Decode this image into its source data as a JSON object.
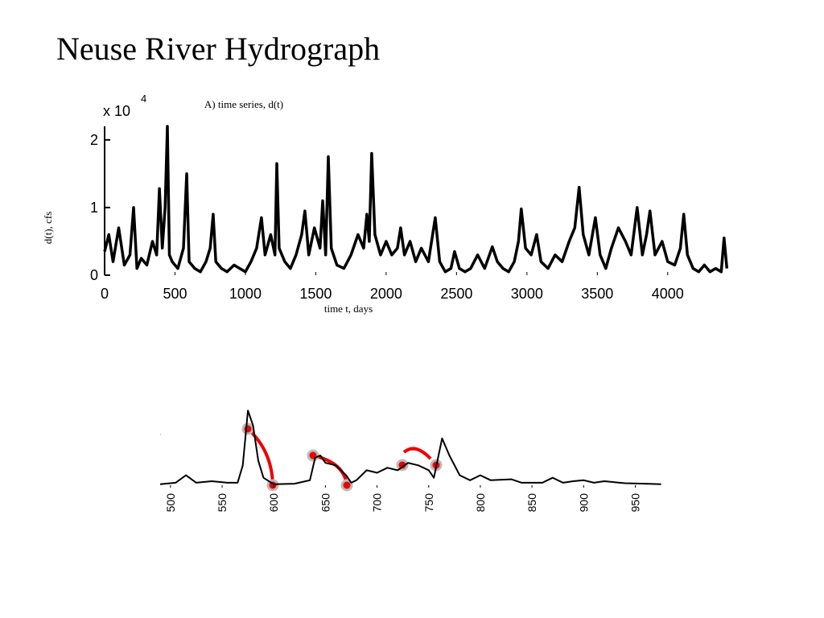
{
  "title": "Neuse River Hydrograph",
  "chart_data": [
    {
      "type": "line",
      "title": "A) time series, d(t)",
      "x_label": "time t, days",
      "y_label": "d(t), cfs",
      "y_multiplier": "x 10",
      "y_multiplier_exponent": "4",
      "color": "#000000",
      "xlim": [
        0,
        4430
      ],
      "ylim": [
        0,
        2.2
      ],
      "xticks": [
        0,
        500,
        1000,
        1500,
        2000,
        2500,
        3000,
        3500,
        4000
      ],
      "yticks": [
        0,
        1,
        2
      ],
      "x": [
        0,
        30,
        60,
        100,
        140,
        180,
        206,
        230,
        260,
        300,
        340,
        370,
        389,
        410,
        430,
        446,
        460,
        480,
        520,
        560,
        583,
        600,
        640,
        680,
        720,
        750,
        771,
        790,
        830,
        870,
        920,
        960,
        1000,
        1040,
        1080,
        1114,
        1140,
        1180,
        1210,
        1223,
        1240,
        1280,
        1320,
        1360,
        1400,
        1423,
        1450,
        1490,
        1530,
        1549,
        1570,
        1589,
        1610,
        1650,
        1700,
        1750,
        1800,
        1840,
        1863,
        1880,
        1897,
        1920,
        1960,
        2000,
        2040,
        2080,
        2103,
        2130,
        2170,
        2210,
        2250,
        2300,
        2349,
        2380,
        2420,
        2460,
        2486,
        2520,
        2560,
        2600,
        2650,
        2700,
        2754,
        2790,
        2830,
        2870,
        2910,
        2940,
        2960,
        2990,
        3030,
        3069,
        3100,
        3150,
        3200,
        3250,
        3300,
        3340,
        3371,
        3400,
        3440,
        3486,
        3520,
        3560,
        3600,
        3650,
        3700,
        3740,
        3783,
        3820,
        3850,
        3874,
        3910,
        3960,
        4000,
        4050,
        4090,
        4114,
        4140,
        4180,
        4220,
        4260,
        4300,
        4340,
        4380,
        4400,
        4420
      ],
      "values": [
        0.35,
        0.6,
        0.2,
        0.7,
        0.15,
        0.3,
        1.0,
        0.1,
        0.25,
        0.15,
        0.5,
        0.3,
        1.28,
        0.4,
        1.0,
        2.2,
        0.3,
        0.2,
        0.1,
        0.4,
        1.5,
        0.2,
        0.1,
        0.05,
        0.2,
        0.4,
        0.9,
        0.2,
        0.1,
        0.05,
        0.15,
        0.1,
        0.05,
        0.2,
        0.4,
        0.85,
        0.3,
        0.6,
        0.3,
        1.65,
        0.4,
        0.2,
        0.1,
        0.3,
        0.6,
        0.95,
        0.3,
        0.7,
        0.4,
        1.1,
        0.3,
        1.75,
        0.4,
        0.15,
        0.1,
        0.3,
        0.6,
        0.4,
        0.9,
        0.5,
        1.8,
        0.6,
        0.3,
        0.5,
        0.3,
        0.4,
        0.7,
        0.3,
        0.5,
        0.2,
        0.4,
        0.2,
        0.85,
        0.2,
        0.05,
        0.1,
        0.35,
        0.1,
        0.05,
        0.1,
        0.3,
        0.1,
        0.42,
        0.2,
        0.1,
        0.05,
        0.2,
        0.5,
        0.98,
        0.4,
        0.3,
        0.6,
        0.2,
        0.1,
        0.3,
        0.2,
        0.5,
        0.7,
        1.3,
        0.6,
        0.3,
        0.85,
        0.3,
        0.1,
        0.4,
        0.7,
        0.5,
        0.3,
        1.0,
        0.3,
        0.6,
        0.95,
        0.3,
        0.5,
        0.2,
        0.15,
        0.4,
        0.9,
        0.3,
        0.1,
        0.05,
        0.15,
        0.05,
        0.1,
        0.05,
        0.55,
        0.1
      ]
    },
    {
      "type": "line",
      "color": "#000000",
      "xlim": [
        490,
        980
      ],
      "ylim": [
        0,
        1.6
      ],
      "xticks": [
        500,
        550,
        600,
        650,
        700,
        750,
        800,
        850,
        900,
        950
      ],
      "x": [
        490,
        505,
        515,
        525,
        540,
        555,
        565,
        570,
        575,
        580,
        585,
        590,
        600,
        620,
        635,
        640,
        645,
        650,
        660,
        670,
        675,
        680,
        690,
        700,
        710,
        720,
        730,
        740,
        750,
        755,
        763,
        770,
        780,
        790,
        800,
        810,
        830,
        840,
        860,
        870,
        880,
        890,
        900,
        910,
        920,
        940,
        960,
        975
      ],
      "values": [
        0.02,
        0.05,
        0.2,
        0.05,
        0.08,
        0.05,
        0.05,
        0.4,
        1.5,
        1.2,
        0.5,
        0.15,
        0.02,
        0.03,
        0.1,
        0.55,
        0.6,
        0.45,
        0.4,
        0.2,
        0.05,
        0.1,
        0.3,
        0.25,
        0.35,
        0.3,
        0.45,
        0.4,
        0.3,
        0.15,
        0.94,
        0.6,
        0.2,
        0.1,
        0.2,
        0.1,
        0.12,
        0.05,
        0.05,
        0.15,
        0.05,
        0.08,
        0.1,
        0.05,
        0.08,
        0.04,
        0.03,
        0.02
      ]
    }
  ]
}
